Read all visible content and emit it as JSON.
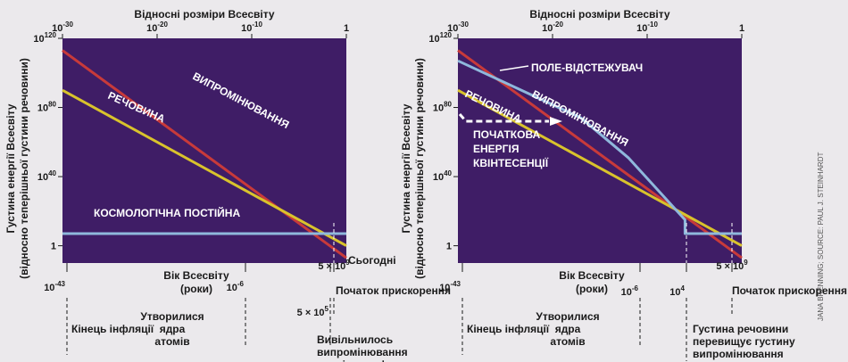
{
  "chart_data": [
    {
      "type": "line",
      "title": "Відносні розміри Всесвіту",
      "ylabel_lines": [
        "Густина енергії Всесвіту",
        "(відносно теперішньої густини речовини)"
      ],
      "xlabel_lines": [
        "Вік Всесвіту",
        "(роки)"
      ],
      "x_log_range": [
        -30,
        0
      ],
      "y_log_range": [
        -10,
        120
      ],
      "log_scale": true,
      "grid": false,
      "x_ticks": [
        "10^-30",
        "10^-20",
        "10^-10",
        "1"
      ],
      "y_ticks": [
        "10^120",
        "10^80",
        "10^40",
        "1"
      ],
      "series": [
        {
          "name": "ВИПРОМІНЮВАННЯ",
          "color": "#c83a3a",
          "x_log": [
            -30,
            0
          ],
          "y_log": [
            113,
            -7
          ]
        },
        {
          "name": "РЕЧОВИНА",
          "color": "#d9c32c",
          "x_log": [
            -30,
            0
          ],
          "y_log": [
            90,
            0
          ]
        },
        {
          "name": "КОСМОЛОГІЧНА ПОСТІЙНА",
          "color": "#8fb8dc",
          "x_log": [
            -30,
            0
          ],
          "y_log": [
            7,
            7
          ]
        }
      ],
      "age_ticks": [
        {
          "label": "10^-43",
          "event": "Кінець інфляції"
        },
        {
          "label": "10^-6",
          "event": "Утворилися ядра атомів"
        },
        {
          "label": "5 × 10^5",
          "event": "Вивільнилось випромінювання космічного фону"
        },
        {
          "label": "5 × 10^9",
          "event": "Початок прискорення"
        }
      ],
      "today_label": "Сьогодні"
    },
    {
      "type": "line",
      "title": "Відносні розміри Всесвіту",
      "ylabel_lines": [
        "Густина енергії Всесвіту",
        "(відносно теперішньої густини речовини)"
      ],
      "xlabel_lines": [
        "Вік Всесвіту",
        "(роки)"
      ],
      "x_log_range": [
        -30,
        0
      ],
      "y_log_range": [
        -10,
        120
      ],
      "log_scale": true,
      "grid": false,
      "x_ticks": [
        "10^-30",
        "10^-20",
        "10^-10",
        "1"
      ],
      "y_ticks": [
        "10^120",
        "10^80",
        "10^40",
        "1"
      ],
      "series": [
        {
          "name": "ВИПРОМІНЮВАННЯ",
          "color": "#c83a3a",
          "x_log": [
            -30,
            0
          ],
          "y_log": [
            113,
            -7
          ]
        },
        {
          "name": "РЕЧОВИНА",
          "color": "#d9c32c",
          "x_log": [
            -30,
            0
          ],
          "y_log": [
            90,
            0
          ]
        },
        {
          "name": "ПОЛЕ-ВІДСТЕЖУВАЧ",
          "color": "#8fb8dc",
          "x_log": [
            -30,
            -17,
            -12,
            -6,
            -6,
            0
          ],
          "y_log": [
            107,
            74,
            51,
            15,
            7,
            7
          ]
        }
      ],
      "annotation": "ПОЧАТКОВА ЕНЕРГІЯ КВІНТЕСЕНЦІЇ",
      "age_ticks": [
        {
          "label": "10^-43",
          "event": "Кінець інфляції"
        },
        {
          "label": "10^-6",
          "event": "Утворилися ядра атомів"
        },
        {
          "label": "10^4",
          "event": "Густина речовини перевищує густину випромінювання"
        },
        {
          "label": "5 × 10^9",
          "event": "Початок прискорення"
        }
      ]
    }
  ],
  "credit": "JANA BRENNING; SOURCE: PAUL J. STEINHARDT"
}
